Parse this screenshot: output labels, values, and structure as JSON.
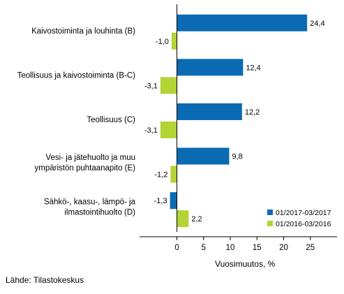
{
  "chart_data": {
    "type": "bar",
    "orientation": "horizontal",
    "categories": [
      [
        "Kaivostoiminta ja louhinta (B)"
      ],
      [
        "Teollisuus ja kaivostoiminta (B-C)"
      ],
      [
        "Teollisuus (C)"
      ],
      [
        "Vesi- ja jätehuolto ja muu",
        "ympäristön puhtaanapito (E)"
      ],
      [
        "Sähkö-, kaasu-, lämpö- ja",
        "ilmastointihuolto (D)"
      ]
    ],
    "series": [
      {
        "name": "01/2017-03/2017",
        "color": "#0a6bb2",
        "values": [
          24.4,
          12.4,
          12.2,
          9.8,
          -1.3
        ],
        "labels": [
          "24,4",
          "12,4",
          "12,2",
          "9,8",
          "-1,3"
        ]
      },
      {
        "name": "01/2016-03/2016",
        "color": "#b4d335",
        "values": [
          -1.0,
          -3.1,
          -3.1,
          -1.2,
          2.2
        ],
        "labels": [
          "-1,0",
          "-3,1",
          "-3,1",
          "-1,2",
          "2,2"
        ]
      }
    ],
    "xlim": [
      -7,
      30
    ],
    "xticks": [
      0,
      5,
      10,
      15,
      20,
      25
    ],
    "xlabel": "Vuosimuutos, %",
    "ylabel": "",
    "title": "",
    "grid": false,
    "legend_position": "bottom-right"
  },
  "source": "Lähde: Tilastokeskus"
}
